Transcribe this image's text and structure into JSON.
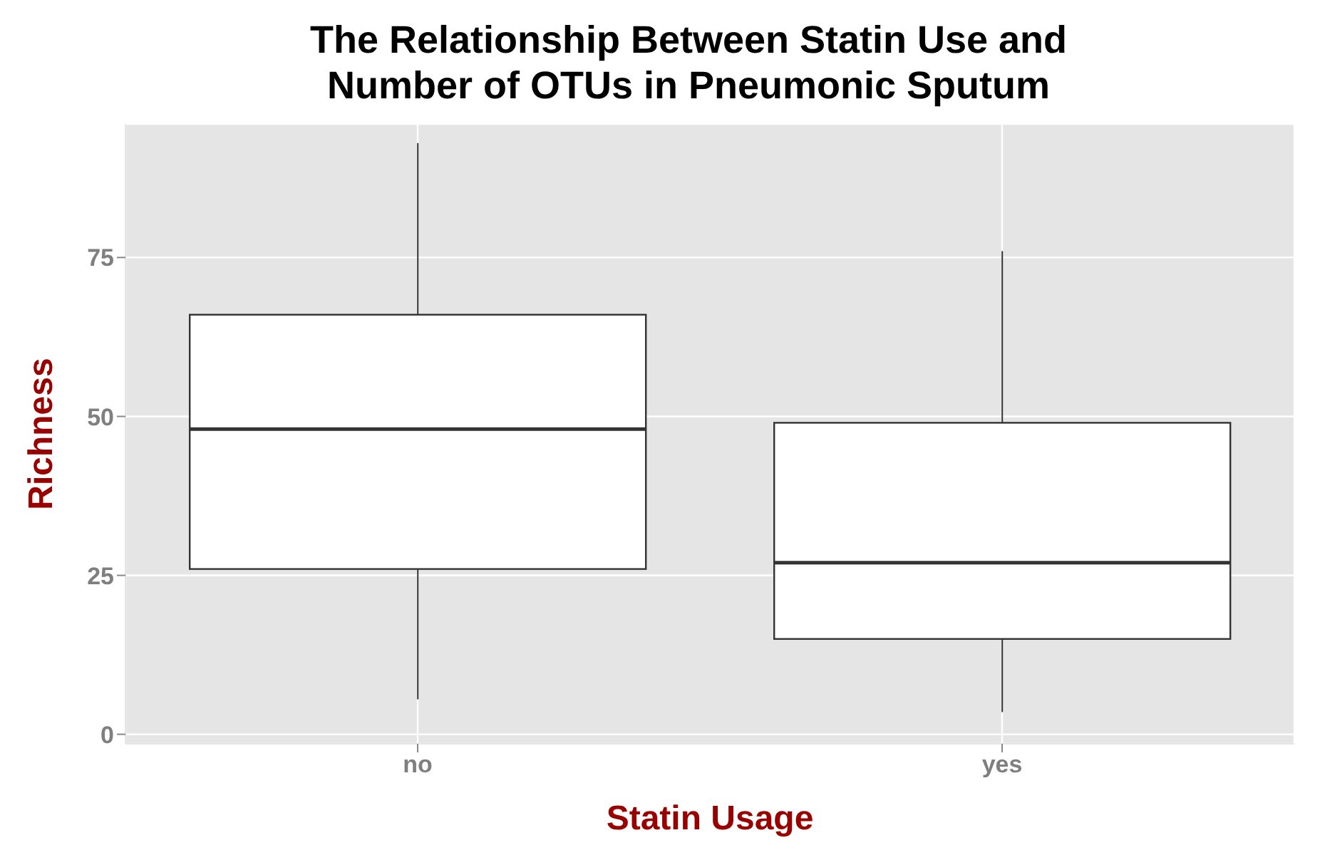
{
  "chart_data": {
    "type": "box",
    "title": "The Relationship Between Statin Use and Number of OTUs in Pneumonic Sputum",
    "xlabel": "Statin Usage",
    "ylabel": "Richness",
    "categories": [
      "no",
      "yes"
    ],
    "boxes": [
      {
        "low": 5.5,
        "q1": 26,
        "median": 48,
        "q3": 66,
        "high": 93
      },
      {
        "low": 3.5,
        "q1": 15,
        "median": 27,
        "q3": 49,
        "high": 76
      }
    ],
    "color": "#ffffff",
    "ylim": [
      -1.5,
      96
    ],
    "yticks": [
      0,
      25,
      50,
      75
    ],
    "grid": true
  }
}
